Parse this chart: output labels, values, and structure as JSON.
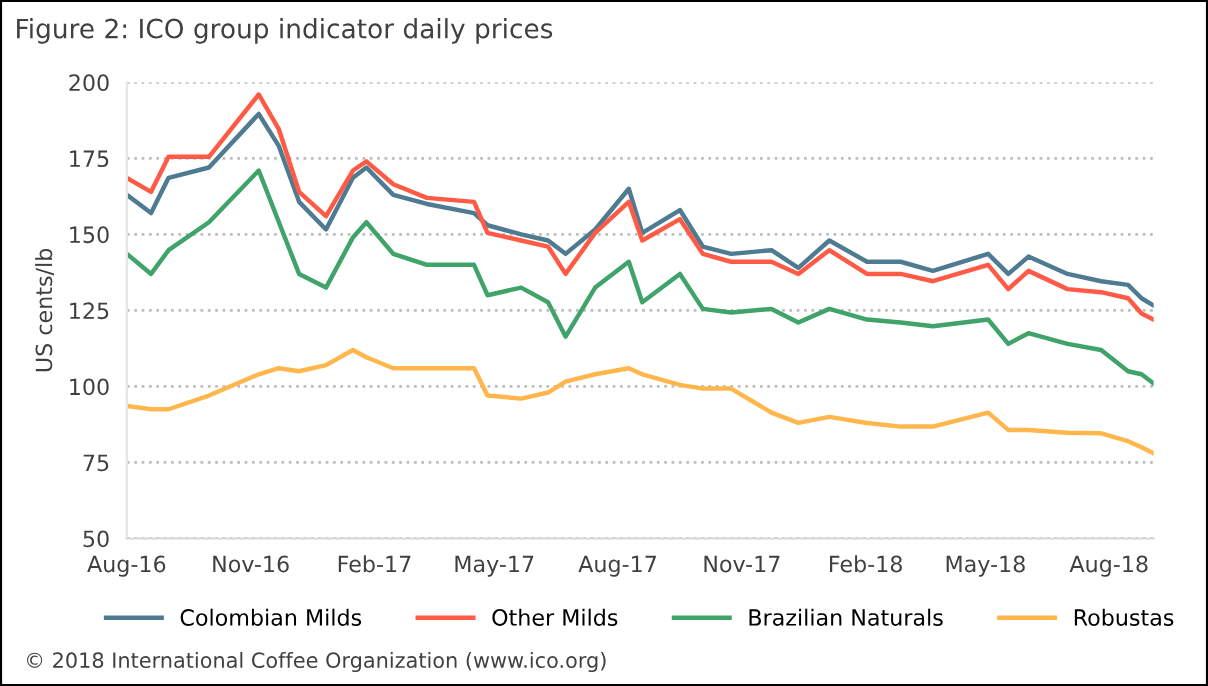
{
  "chart_data": {
    "type": "line",
    "title": "Figure 2: ICO group indicator daily prices",
    "ylabel": "US cents/lb",
    "annotations": [
      "© 2018 International Coffee Organization (www.ico.org)"
    ],
    "x": [
      "2016-08-01",
      "2016-08-19",
      "2016-09-01",
      "2016-10-01",
      "2016-11-07",
      "2016-11-22",
      "2016-12-07",
      "2016-12-27",
      "2017-01-16",
      "2017-01-26",
      "2017-02-15",
      "2017-03-12",
      "2017-04-16",
      "2017-04-26",
      "2017-05-21",
      "2017-06-10",
      "2017-06-23",
      "2017-07-15",
      "2017-08-09",
      "2017-08-19",
      "2017-09-16",
      "2017-10-03",
      "2017-10-24",
      "2017-11-23",
      "2017-12-13",
      "2018-01-05",
      "2018-02-02",
      "2018-02-27",
      "2018-03-23",
      "2018-05-03",
      "2018-05-18",
      "2018-06-02",
      "2018-07-01",
      "2018-07-26",
      "2018-08-15",
      "2018-08-25",
      "2018-09-03"
    ],
    "series": [
      {
        "name": "Colombian Milds",
        "color": "#4e7a92",
        "values": [
          163,
          157,
          168.6,
          172,
          189.6,
          179,
          160.7,
          151.6,
          168.6,
          172,
          163,
          160,
          157,
          153,
          150,
          148,
          143.6,
          151.6,
          165,
          150.5,
          158,
          146,
          143.6,
          144.8,
          139,
          148,
          141,
          141,
          138,
          143.6,
          137,
          142.7,
          137,
          134.6,
          133.4,
          129,
          126.6
        ]
      },
      {
        "name": "Other Milds",
        "color": "#ff5a46",
        "values": [
          168.6,
          164,
          175.5,
          175.5,
          196,
          184.5,
          164,
          156,
          171,
          174,
          166.5,
          162,
          160.7,
          150.5,
          148,
          146,
          137,
          150.5,
          160.7,
          148,
          155,
          143.6,
          141,
          141,
          137,
          144.8,
          137,
          137,
          134.6,
          140,
          132,
          138,
          132,
          131,
          129,
          124,
          122
        ]
      },
      {
        "name": "Brazilian Naturals",
        "color": "#3fa36a",
        "values": [
          143.6,
          137,
          144.8,
          154,
          171,
          154,
          137,
          132.5,
          149,
          154,
          143.6,
          140,
          140,
          130,
          132.5,
          127.7,
          116.4,
          132.5,
          141,
          127.7,
          137,
          125.5,
          124.3,
          125.5,
          121,
          125.5,
          122,
          121,
          119.8,
          122,
          114,
          117.5,
          114,
          112,
          105,
          104,
          101
        ]
      },
      {
        "name": "Robustas",
        "color": "#ffb74d",
        "values": [
          93.6,
          92.5,
          92.5,
          97,
          104,
          106,
          105,
          107,
          112,
          109.6,
          106,
          106,
          106,
          97,
          96,
          98,
          101.6,
          104,
          106,
          104,
          100.5,
          99.3,
          99.3,
          91.4,
          88,
          90,
          88,
          86.8,
          86.8,
          91.4,
          85.7,
          85.7,
          84.8,
          84.6,
          82,
          80,
          78
        ]
      }
    ],
    "xlim": [
      "2016-08-01",
      "2018-09-03"
    ],
    "xticks": [
      {
        "value": "2016-08-01",
        "label": "Aug-16"
      },
      {
        "value": "2016-11-01",
        "label": "Nov-16"
      },
      {
        "value": "2017-02-01",
        "label": "Feb-17"
      },
      {
        "value": "2017-05-01",
        "label": "May-17"
      },
      {
        "value": "2017-08-01",
        "label": "Aug-17"
      },
      {
        "value": "2017-11-01",
        "label": "Nov-17"
      },
      {
        "value": "2018-02-01",
        "label": "Feb-18"
      },
      {
        "value": "2018-05-01",
        "label": "May-18"
      },
      {
        "value": "2018-08-01",
        "label": "Aug-18"
      }
    ],
    "ylim": [
      50,
      200
    ],
    "yticks": [
      50,
      75,
      100,
      125,
      150,
      175,
      200
    ],
    "grid": "y",
    "legend": "bottom",
    "line_style": "solid"
  }
}
